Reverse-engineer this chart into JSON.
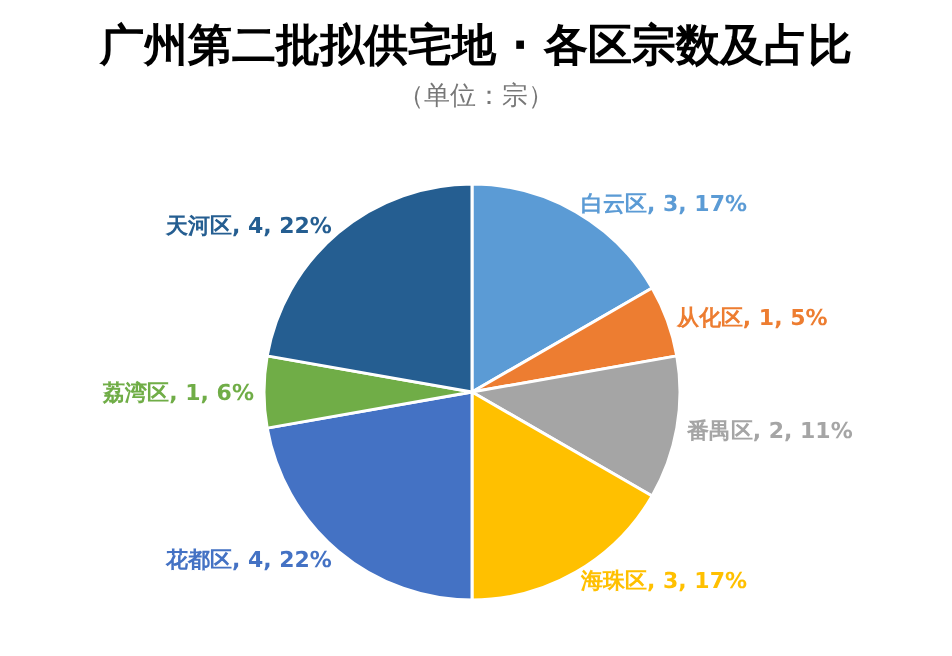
{
  "chart_data": {
    "type": "pie",
    "title": "广州第二批拟供宅地 · 各区宗数及占比",
    "subtitle": "（单位：宗）",
    "categories": [
      "白云区",
      "从化区",
      "番禺区",
      "海珠区",
      "花都区",
      "荔湾区",
      "天河区"
    ],
    "values": [
      3,
      1,
      2,
      3,
      4,
      1,
      4
    ],
    "value_labels": [
      ", 3, 17%",
      ", 1, 5%",
      ", 2, 11%",
      ", 3, 17%",
      ", 4, 22%",
      ", 1, 6%",
      ", 4, 22%"
    ],
    "colors": [
      "#5b9bd5",
      "#ed7d31",
      "#a5a5a5",
      "#ffc000",
      "#4472c4",
      "#70ad47",
      "#255e91"
    ]
  }
}
